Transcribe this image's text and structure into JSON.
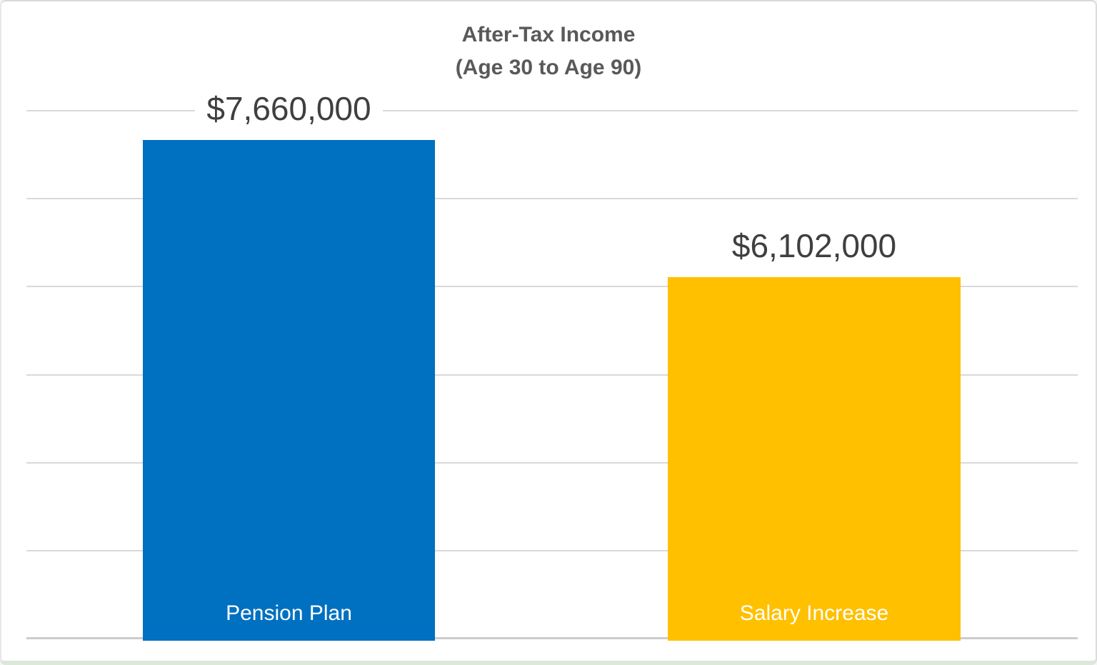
{
  "title": {
    "line1": "After-Tax Income",
    "line2": "(Age 30 to Age 90)"
  },
  "chart_data": {
    "type": "bar",
    "title": "After-Tax Income (Age 30 to Age 90)",
    "categories": [
      "Pension Plan",
      "Salary Increase"
    ],
    "values": [
      7660000,
      6102000
    ],
    "value_labels": [
      "$7,660,000",
      "$6,102,000"
    ],
    "series": [
      {
        "name": "After-Tax Income",
        "values": [
          7660000,
          6102000
        ]
      }
    ],
    "bar_colors": [
      "#0070c0",
      "#ffc000"
    ],
    "xlabel": "",
    "ylabel": "",
    "ylim": [
      2000000,
      8000000
    ],
    "gridline_interval": 1000000,
    "grid": "horizontal-only",
    "y_tick_labels": "none",
    "legend": "none",
    "colors": {
      "gridline": "#d9d9d9",
      "axis_line": "#cccccc",
      "title_text": "#595959",
      "value_label_text": "#3f3f3f",
      "category_label_text": "#ffffff",
      "plot_background": "#ffffff"
    }
  }
}
